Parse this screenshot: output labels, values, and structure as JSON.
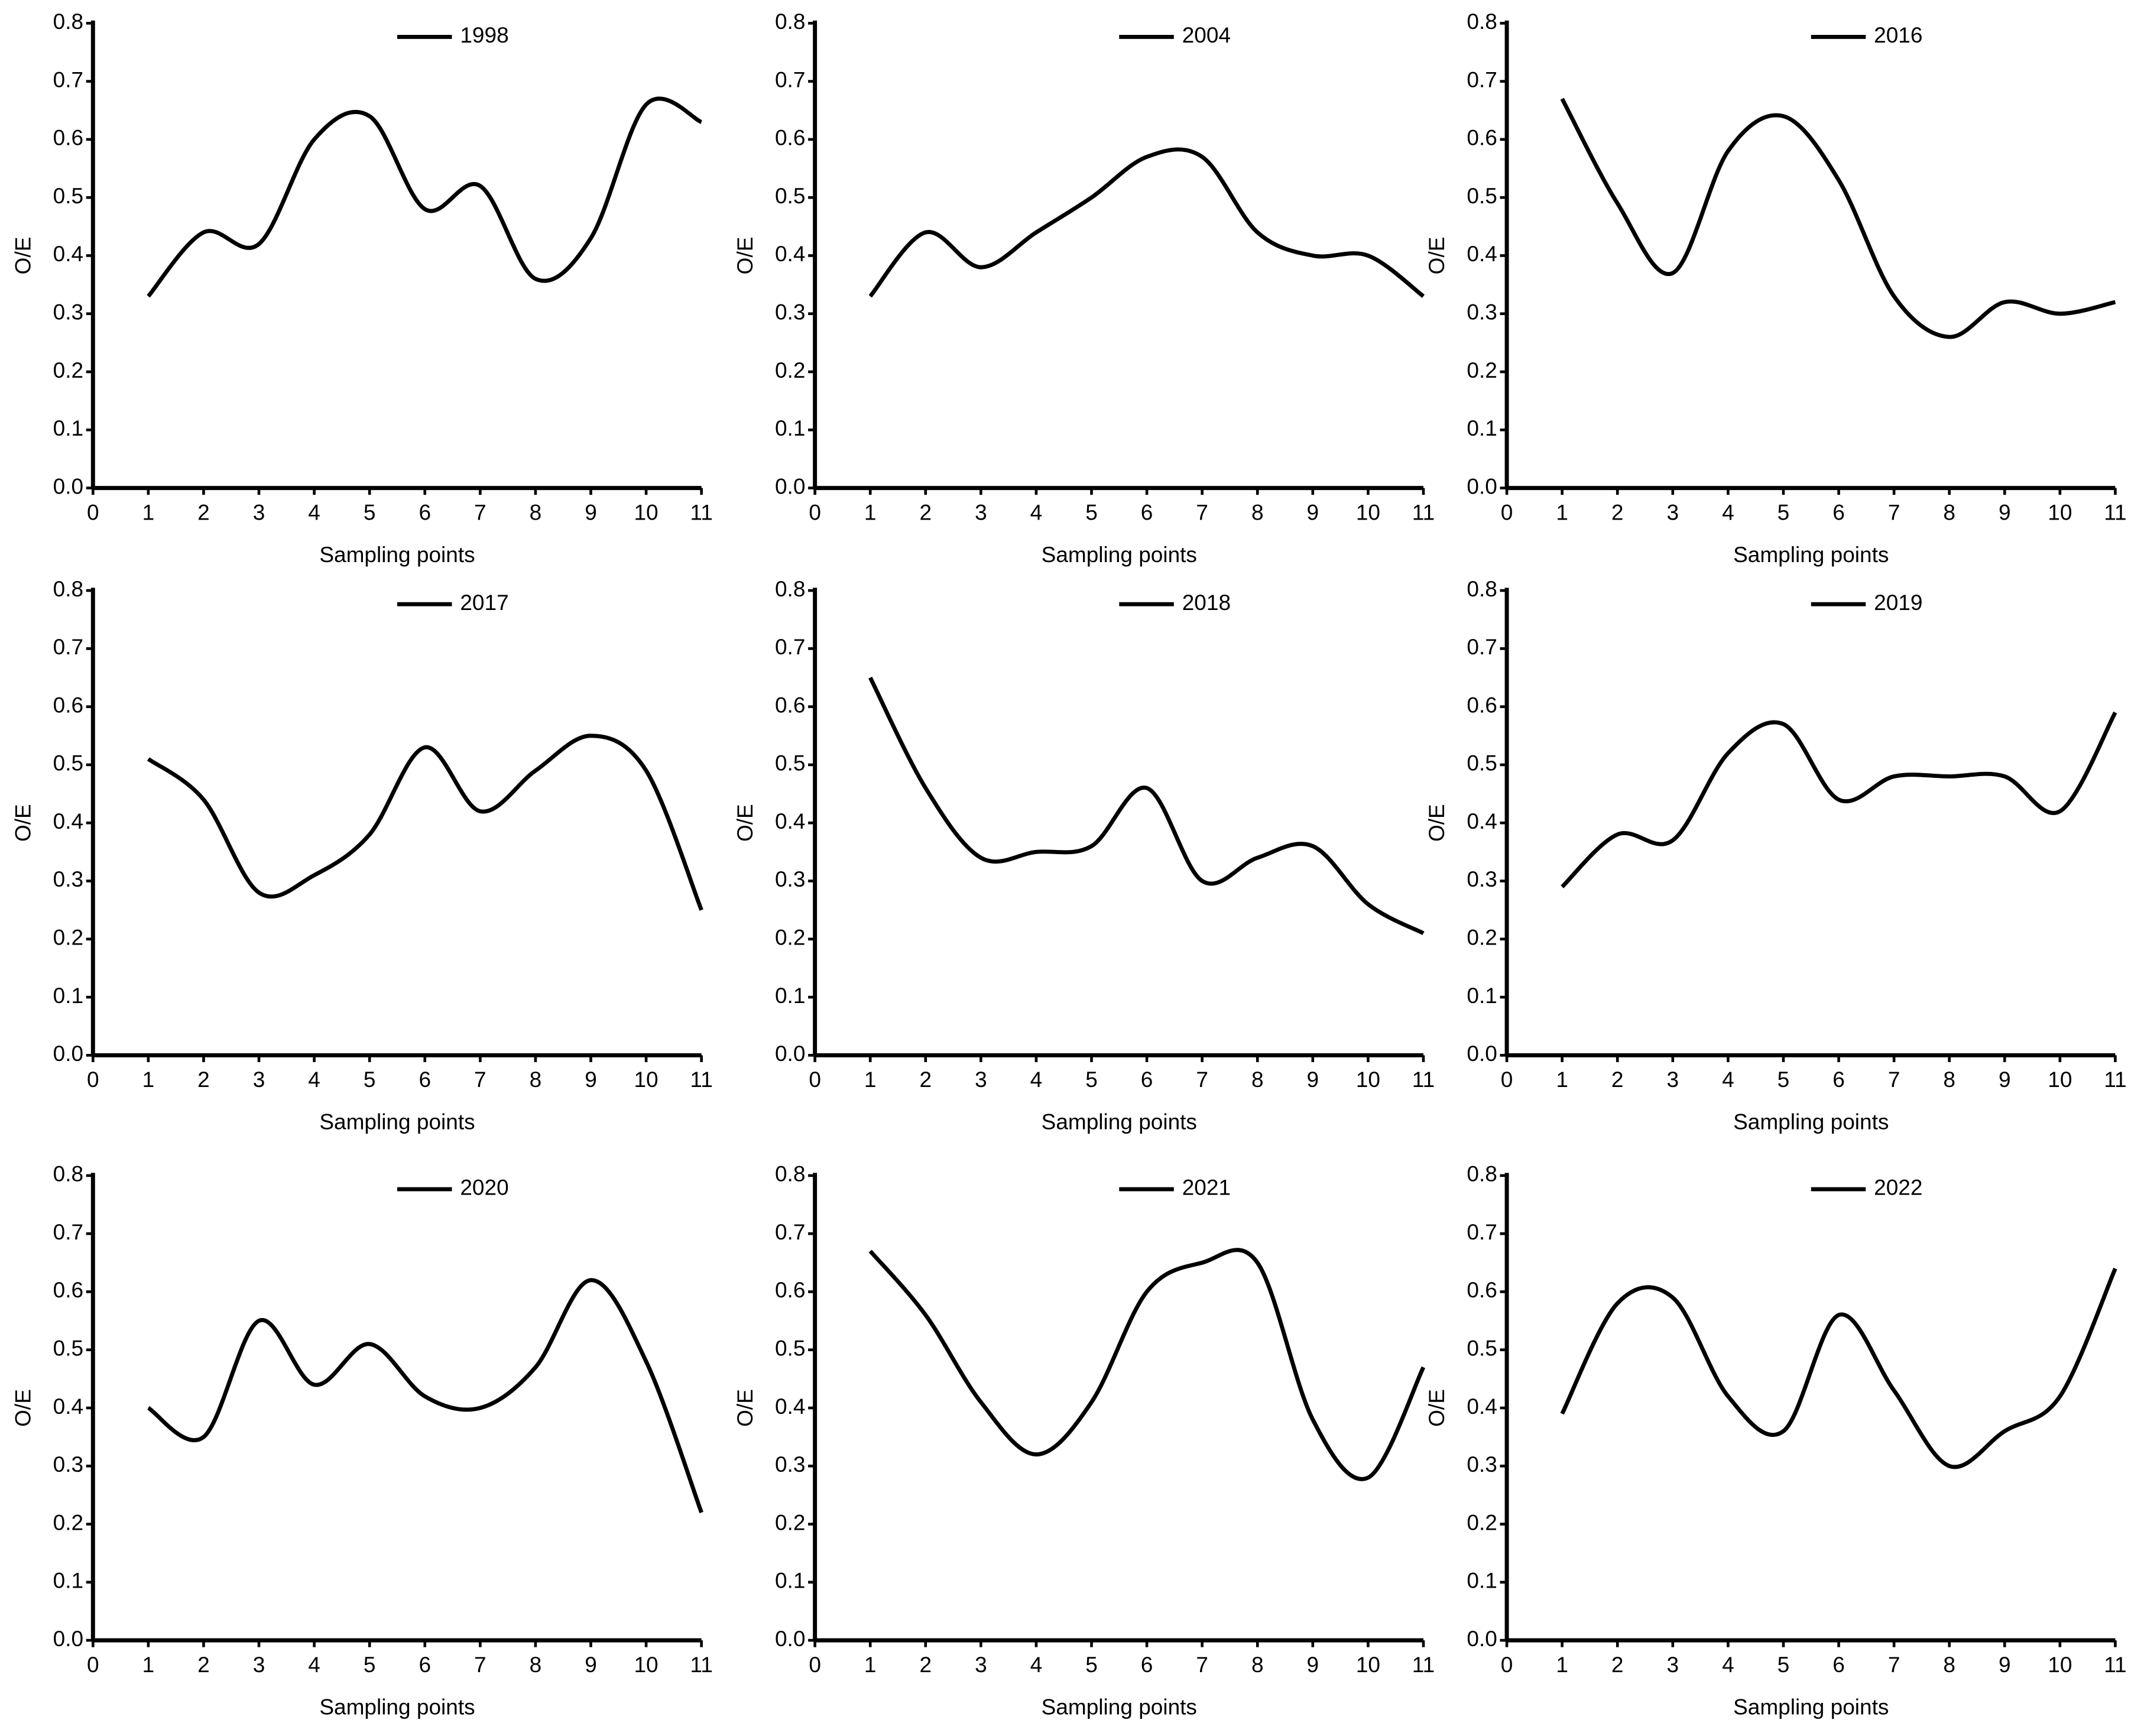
{
  "chart_data": [
    {
      "type": "line",
      "x": [
        1,
        2,
        3,
        4,
        5,
        6,
        7,
        8,
        9,
        10,
        11
      ],
      "series": [
        {
          "name": "1998",
          "color": "#000000",
          "values": [
            0.33,
            0.44,
            0.42,
            0.6,
            0.64,
            0.48,
            0.52,
            0.36,
            0.43,
            0.66,
            0.63
          ]
        }
      ],
      "xlabel": "Sampling points",
      "ylabel": "O/E",
      "xlim": [
        0,
        11
      ],
      "xticks": [
        0,
        1,
        2,
        3,
        4,
        5,
        6,
        7,
        8,
        9,
        10,
        11
      ],
      "ylim": [
        0,
        0.8
      ],
      "yticks": [
        {
          "value": 0,
          "label": "0.0"
        },
        0.1,
        0.2,
        0.3,
        0.4,
        0.5,
        0.6,
        0.7,
        0.8
      ]
    },
    {
      "type": "line",
      "x": [
        1,
        2,
        3,
        4,
        5,
        6,
        7,
        8,
        9,
        10,
        11
      ],
      "series": [
        {
          "name": "2004",
          "color": "#000000",
          "values": [
            0.33,
            0.44,
            0.38,
            0.44,
            0.5,
            0.57,
            0.57,
            0.44,
            0.4,
            0.4,
            0.33
          ]
        }
      ],
      "xlabel": "Sampling points",
      "ylabel": "O/E",
      "xlim": [
        0,
        11
      ],
      "xticks": [
        0,
        1,
        2,
        3,
        4,
        5,
        6,
        7,
        8,
        9,
        10,
        11
      ],
      "ylim": [
        0,
        0.8
      ],
      "yticks": [
        {
          "value": 0,
          "label": "0.0"
        },
        0.1,
        0.2,
        0.3,
        0.4,
        0.5,
        0.6,
        0.7,
        0.8
      ]
    },
    {
      "type": "line",
      "x": [
        1,
        2,
        3,
        4,
        5,
        6,
        7,
        8,
        9,
        10,
        11
      ],
      "series": [
        {
          "name": "2016",
          "color": "#000000",
          "values": [
            0.67,
            0.49,
            0.37,
            0.58,
            0.64,
            0.53,
            0.33,
            0.26,
            0.32,
            0.3,
            0.32
          ]
        }
      ],
      "xlabel": "Sampling points",
      "ylabel": "O/E",
      "xlim": [
        0,
        11
      ],
      "xticks": [
        0,
        1,
        2,
        3,
        4,
        5,
        6,
        7,
        8,
        9,
        10,
        11
      ],
      "ylim": [
        0,
        0.8
      ],
      "yticks": [
        {
          "value": 0,
          "label": "0.0"
        },
        0.1,
        0.2,
        0.3,
        0.4,
        0.5,
        0.6,
        0.7,
        0.8
      ]
    },
    {
      "type": "line",
      "x": [
        1,
        2,
        3,
        4,
        5,
        6,
        7,
        8,
        9,
        10,
        11
      ],
      "series": [
        {
          "name": "2017",
          "color": "#000000",
          "values": [
            0.51,
            0.44,
            0.28,
            0.31,
            0.38,
            0.53,
            0.42,
            0.49,
            0.55,
            0.49,
            0.25
          ]
        }
      ],
      "xlabel": "Sampling points",
      "ylabel": "O/E",
      "xlim": [
        0,
        11
      ],
      "xticks": [
        0,
        1,
        2,
        3,
        4,
        5,
        6,
        7,
        8,
        9,
        10,
        11
      ],
      "ylim": [
        0,
        0.8
      ],
      "yticks": [
        {
          "value": 0,
          "label": "0.0"
        },
        0.1,
        0.2,
        0.3,
        0.4,
        0.5,
        0.6,
        0.7,
        0.8
      ]
    },
    {
      "type": "line",
      "x": [
        1,
        2,
        3,
        4,
        5,
        6,
        7,
        8,
        9,
        10,
        11
      ],
      "series": [
        {
          "name": "2018",
          "color": "#000000",
          "values": [
            0.65,
            0.46,
            0.34,
            0.35,
            0.36,
            0.46,
            0.3,
            0.34,
            0.36,
            0.26,
            0.21
          ]
        }
      ],
      "xlabel": "Sampling points",
      "ylabel": "O/E",
      "xlim": [
        0,
        11
      ],
      "xticks": [
        0,
        1,
        2,
        3,
        4,
        5,
        6,
        7,
        8,
        9,
        10,
        11
      ],
      "ylim": [
        0,
        0.8
      ],
      "yticks": [
        {
          "value": 0,
          "label": "0.0"
        },
        0.1,
        0.2,
        0.3,
        0.4,
        0.5,
        0.6,
        0.7,
        0.8
      ]
    },
    {
      "type": "line",
      "x": [
        1,
        2,
        3,
        4,
        5,
        6,
        7,
        8,
        9,
        10,
        11
      ],
      "series": [
        {
          "name": "2019",
          "color": "#000000",
          "values": [
            0.29,
            0.38,
            0.37,
            0.52,
            0.57,
            0.44,
            0.48,
            0.48,
            0.48,
            0.42,
            0.59
          ]
        }
      ],
      "xlabel": "Sampling points",
      "ylabel": "O/E",
      "xlim": [
        0,
        11
      ],
      "xticks": [
        0,
        1,
        2,
        3,
        4,
        5,
        6,
        7,
        8,
        9,
        10,
        11
      ],
      "ylim": [
        0,
        0.8
      ],
      "yticks": [
        {
          "value": 0,
          "label": "0.0"
        },
        0.1,
        0.2,
        0.3,
        0.4,
        0.5,
        0.6,
        0.7,
        0.8
      ]
    },
    {
      "type": "line",
      "x": [
        1,
        2,
        3,
        4,
        5,
        6,
        7,
        8,
        9,
        10,
        11
      ],
      "series": [
        {
          "name": "2020",
          "color": "#000000",
          "values": [
            0.4,
            0.35,
            0.55,
            0.44,
            0.51,
            0.42,
            0.4,
            0.47,
            0.62,
            0.48,
            0.22
          ]
        }
      ],
      "xlabel": "Sampling points",
      "ylabel": "O/E",
      "xlim": [
        0,
        11
      ],
      "xticks": [
        0,
        1,
        2,
        3,
        4,
        5,
        6,
        7,
        8,
        9,
        10,
        11
      ],
      "ylim": [
        0,
        0.8
      ],
      "yticks": [
        {
          "value": 0,
          "label": "0.0"
        },
        0.1,
        0.2,
        0.3,
        0.4,
        0.5,
        0.6,
        0.7,
        0.8
      ]
    },
    {
      "type": "line",
      "x": [
        1,
        2,
        3,
        4,
        5,
        6,
        7,
        8,
        9,
        10,
        11
      ],
      "series": [
        {
          "name": "2021",
          "color": "#000000",
          "values": [
            0.67,
            0.56,
            0.41,
            0.32,
            0.41,
            0.6,
            0.65,
            0.65,
            0.38,
            0.28,
            0.47
          ]
        }
      ],
      "xlabel": "Sampling points",
      "ylabel": "O/E",
      "xlim": [
        0,
        11
      ],
      "xticks": [
        0,
        1,
        2,
        3,
        4,
        5,
        6,
        7,
        8,
        9,
        10,
        11
      ],
      "ylim": [
        0,
        0.8
      ],
      "yticks": [
        {
          "value": 0,
          "label": "0.0"
        },
        0.1,
        0.2,
        0.3,
        0.4,
        0.5,
        0.6,
        0.7,
        0.8
      ]
    },
    {
      "type": "line",
      "x": [
        1,
        2,
        3,
        4,
        5,
        6,
        7,
        8,
        9,
        10,
        11
      ],
      "series": [
        {
          "name": "2022",
          "color": "#000000",
          "values": [
            0.39,
            0.58,
            0.59,
            0.42,
            0.36,
            0.56,
            0.43,
            0.3,
            0.36,
            0.42,
            0.64
          ]
        }
      ],
      "xlabel": "Sampling points",
      "ylabel": "O/E",
      "xlim": [
        0,
        11
      ],
      "xticks": [
        0,
        1,
        2,
        3,
        4,
        5,
        6,
        7,
        8,
        9,
        10,
        11
      ],
      "ylim": [
        0,
        0.8
      ],
      "yticks": [
        {
          "value": 0,
          "label": "0.0"
        },
        0.1,
        0.2,
        0.3,
        0.4,
        0.5,
        0.6,
        0.7,
        0.8
      ]
    }
  ]
}
